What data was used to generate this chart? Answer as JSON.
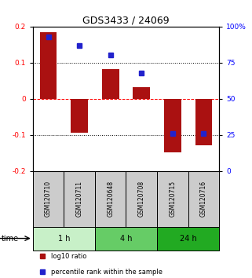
{
  "title": "GDS3433 / 24069",
  "samples": [
    "GSM120710",
    "GSM120711",
    "GSM120648",
    "GSM120708",
    "GSM120715",
    "GSM120716"
  ],
  "log10_ratio": [
    0.185,
    -0.095,
    0.082,
    0.032,
    -0.148,
    -0.128
  ],
  "percentile_rank": [
    93,
    87,
    80,
    68,
    26,
    26
  ],
  "time_groups": [
    {
      "label": "1 h",
      "indices": [
        0,
        1
      ],
      "color": "#c8f0c8"
    },
    {
      "label": "4 h",
      "indices": [
        2,
        3
      ],
      "color": "#66cc66"
    },
    {
      "label": "24 h",
      "indices": [
        4,
        5
      ],
      "color": "#33bb33"
    }
  ],
  "bar_color": "#aa1111",
  "dot_color": "#2222cc",
  "ylim": [
    -0.2,
    0.2
  ],
  "yticks_left": [
    -0.2,
    -0.1,
    0,
    0.1,
    0.2
  ],
  "yticks_right_pct": [
    0,
    25,
    50,
    75,
    100
  ],
  "hlines": [
    0.1,
    0.0,
    -0.1
  ],
  "hline_styles": [
    "dotted",
    "dashed",
    "dotted"
  ],
  "hline_colors": [
    "black",
    "red",
    "black"
  ],
  "bar_width": 0.55,
  "sample_box_color": "#cccccc",
  "title_fontsize": 9,
  "tick_fontsize": 6.5,
  "legend_items": [
    {
      "label": "log10 ratio",
      "color": "#aa1111"
    },
    {
      "label": "percentile rank within the sample",
      "color": "#2222cc"
    }
  ]
}
